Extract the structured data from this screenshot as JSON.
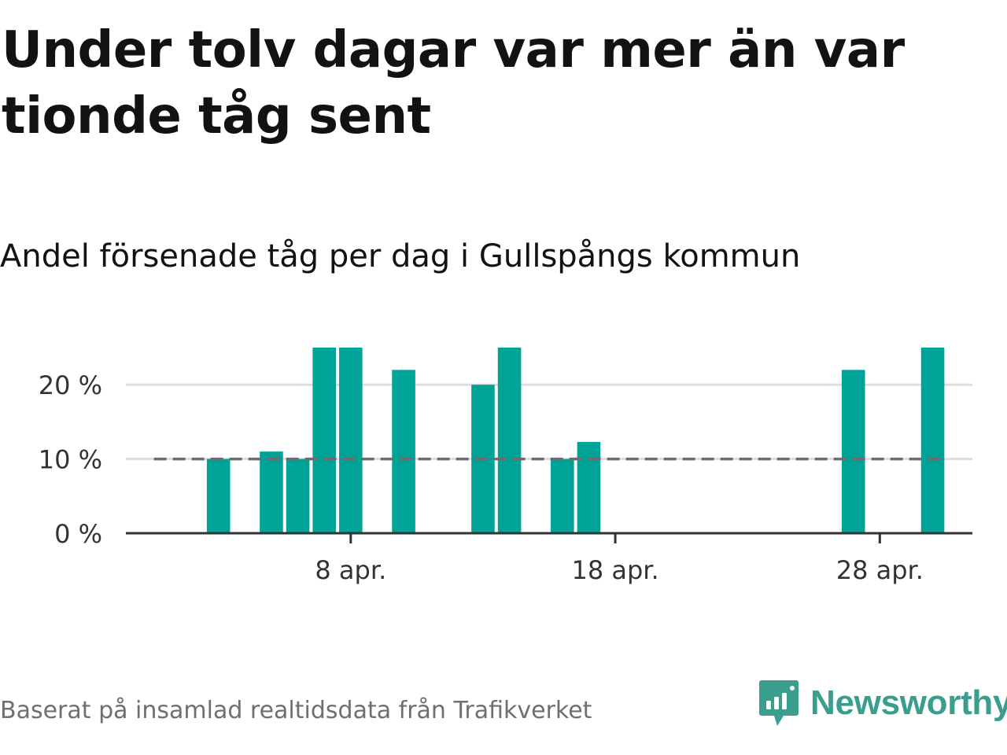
{
  "title": "Under tolv dagar var mer än var tionde tåg sent",
  "subtitle": "Andel försenade tåg per dag i Gullspångs kommun",
  "source": "Baserat på insamlad realtidsdata från Trafikverket",
  "logo": {
    "text": "Newsworthy",
    "icon": "newsworthy-logo-icon",
    "color": "#3a9e8f"
  },
  "colors": {
    "bar": "#00a398",
    "reference_line": "#6b6b72",
    "grid": "#dddddd",
    "axis": "#333333"
  },
  "chart_data": {
    "type": "bar",
    "title": "",
    "xlabel": "",
    "ylabel": "",
    "x": [
      "1 apr.",
      "2 apr.",
      "3 apr.",
      "4 apr.",
      "5 apr.",
      "6 apr.",
      "7 apr.",
      "8 apr.",
      "9 apr.",
      "10 apr.",
      "11 apr.",
      "12 apr.",
      "13 apr.",
      "14 apr.",
      "15 apr.",
      "16 apr.",
      "17 apr.",
      "18 apr.",
      "19 apr.",
      "20 apr.",
      "21 apr.",
      "22 apr.",
      "23 apr.",
      "24 apr.",
      "25 apr.",
      "26 apr.",
      "27 apr.",
      "28 apr.",
      "29 apr.",
      "30 apr."
    ],
    "values": [
      null,
      null,
      10,
      null,
      11,
      10,
      25,
      25,
      null,
      22,
      null,
      null,
      20,
      25,
      null,
      10,
      12.3,
      null,
      null,
      null,
      null,
      null,
      null,
      null,
      null,
      null,
      22,
      null,
      null,
      25
    ],
    "xticks": [
      {
        "index": 7,
        "label": "8 apr."
      },
      {
        "index": 17,
        "label": "18 apr."
      },
      {
        "index": 27,
        "label": "28 apr."
      }
    ],
    "yticks": [
      {
        "value": 0,
        "label": "0 %"
      },
      {
        "value": 10,
        "label": "10 %"
      },
      {
        "value": 20,
        "label": "20 %"
      }
    ],
    "ylim": [
      0,
      25
    ],
    "reference_line": {
      "value": 10,
      "style": "dashed"
    },
    "grid": true
  }
}
